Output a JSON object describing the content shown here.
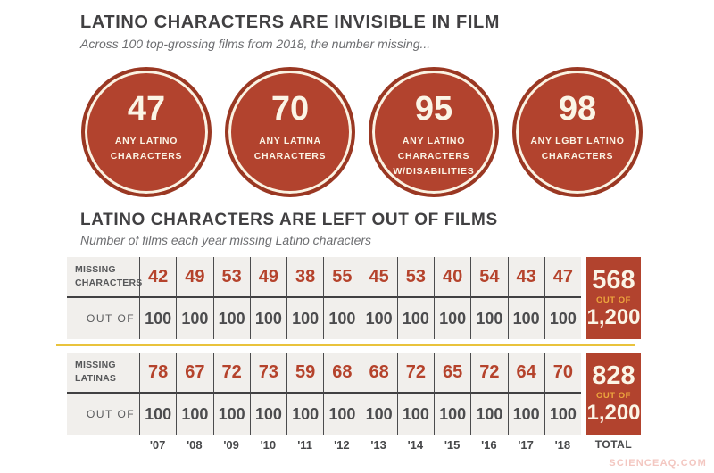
{
  "watermark": "SCIENCEAQ.COM",
  "colors": {
    "brick_red": "#b2432e",
    "dark_red_ring": "#9a3823",
    "cream": "#fbf5e6",
    "gold_divider": "#e9c33c",
    "gold_out_of": "#eda73d",
    "dark_text": "#414042",
    "gray_text": "#6d6e71",
    "table_bg": "#f1efec",
    "grid_line": "#4b4b4d",
    "watermark_pink": "#f3c7c1"
  },
  "section1": {
    "title": "LATINO CHARACTERS ARE INVISIBLE IN FILM",
    "subtitle": "Across 100 top-grossing films from 2018, the number missing...",
    "circles": [
      {
        "value": "47",
        "label": "ANY LATINO CHARACTERS"
      },
      {
        "value": "70",
        "label": "ANY LATINA CHARACTERS"
      },
      {
        "value": "95",
        "label": "ANY LATINO CHARACTERS W/DISABILITIES"
      },
      {
        "value": "98",
        "label": "ANY LGBT LATINO CHARACTERS"
      }
    ]
  },
  "section2": {
    "title": "LATINO CHARACTERS ARE LEFT OUT OF FILMS",
    "subtitle": "Number of films each year missing Latino characters",
    "out_of_label": "OUT OF",
    "total_label": "TOTAL"
  },
  "chart_data": {
    "type": "table",
    "title": "LATINO CHARACTERS ARE LEFT OUT OF FILMS",
    "subtitle": "Number of films each year missing Latino characters",
    "categories": [
      "'07",
      "'08",
      "'09",
      "'10",
      "'11",
      "'12",
      "'13",
      "'14",
      "'15",
      "'16",
      "'17",
      "'18"
    ],
    "series": [
      {
        "name": "MISSING CHARACTERS",
        "values": [
          42,
          49,
          53,
          49,
          38,
          55,
          45,
          53,
          40,
          54,
          43,
          47
        ],
        "per_year_denominator": "100",
        "total": "568",
        "total_out_of_label": "OUT OF",
        "total_denominator": "1,200"
      },
      {
        "name": "MISSING LATINAS",
        "values": [
          78,
          67,
          72,
          73,
          59,
          68,
          68,
          72,
          65,
          72,
          64,
          70
        ],
        "per_year_denominator": "100",
        "total": "828",
        "total_out_of_label": "OUT OF",
        "total_denominator": "1,200"
      }
    ],
    "stat_circles": [
      {
        "value": 47,
        "label": "ANY LATINO CHARACTERS",
        "out_of": 100
      },
      {
        "value": 70,
        "label": "ANY LATINA CHARACTERS",
        "out_of": 100
      },
      {
        "value": 95,
        "label": "ANY LATINO CHARACTERS W/DISABILITIES",
        "out_of": 100
      },
      {
        "value": 98,
        "label": "ANY LGBT LATINO CHARACTERS",
        "out_of": 100
      }
    ],
    "legend_position": "none",
    "grid": true
  }
}
